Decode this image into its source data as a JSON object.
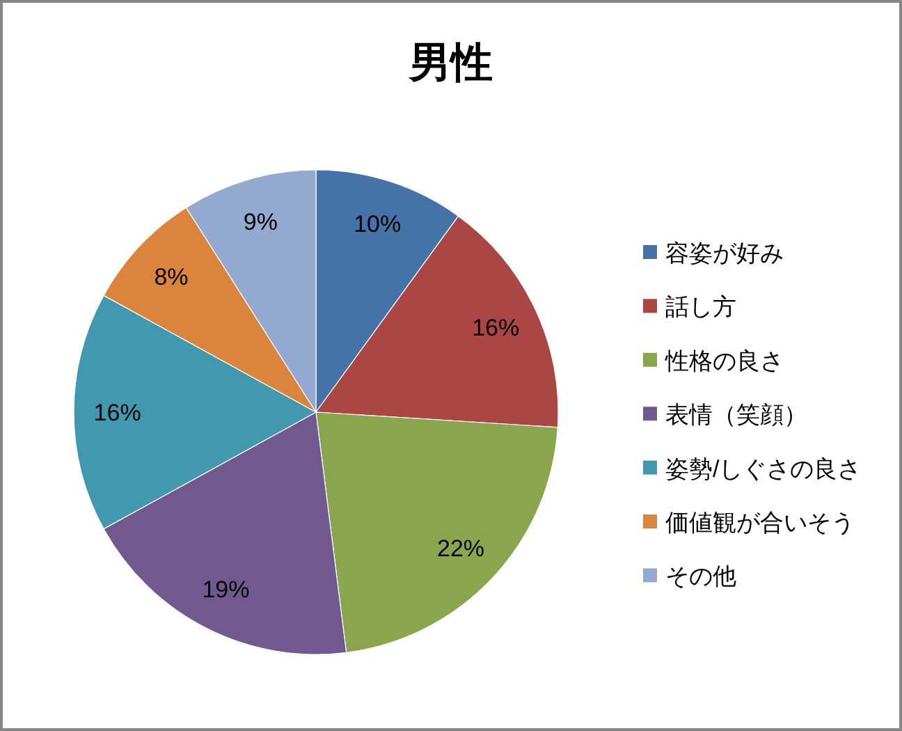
{
  "chart_data": {
    "type": "pie",
    "title": "男性",
    "categories": [
      "容姿が好み",
      "話し方",
      "性格の良さ",
      "表情（笑顔）",
      "姿勢/しぐさの良さ",
      "価値観が合いそう",
      "その他"
    ],
    "values": [
      10,
      16,
      22,
      19,
      16,
      8,
      9
    ],
    "colors": [
      "#4572a7",
      "#aa4643",
      "#89a54e",
      "#71588f",
      "#4198af",
      "#db843d",
      "#93a9cf"
    ],
    "value_labels": [
      "10%",
      "16%",
      "22%",
      "19%",
      "16%",
      "8%",
      "9%"
    ],
    "legend": "right"
  }
}
